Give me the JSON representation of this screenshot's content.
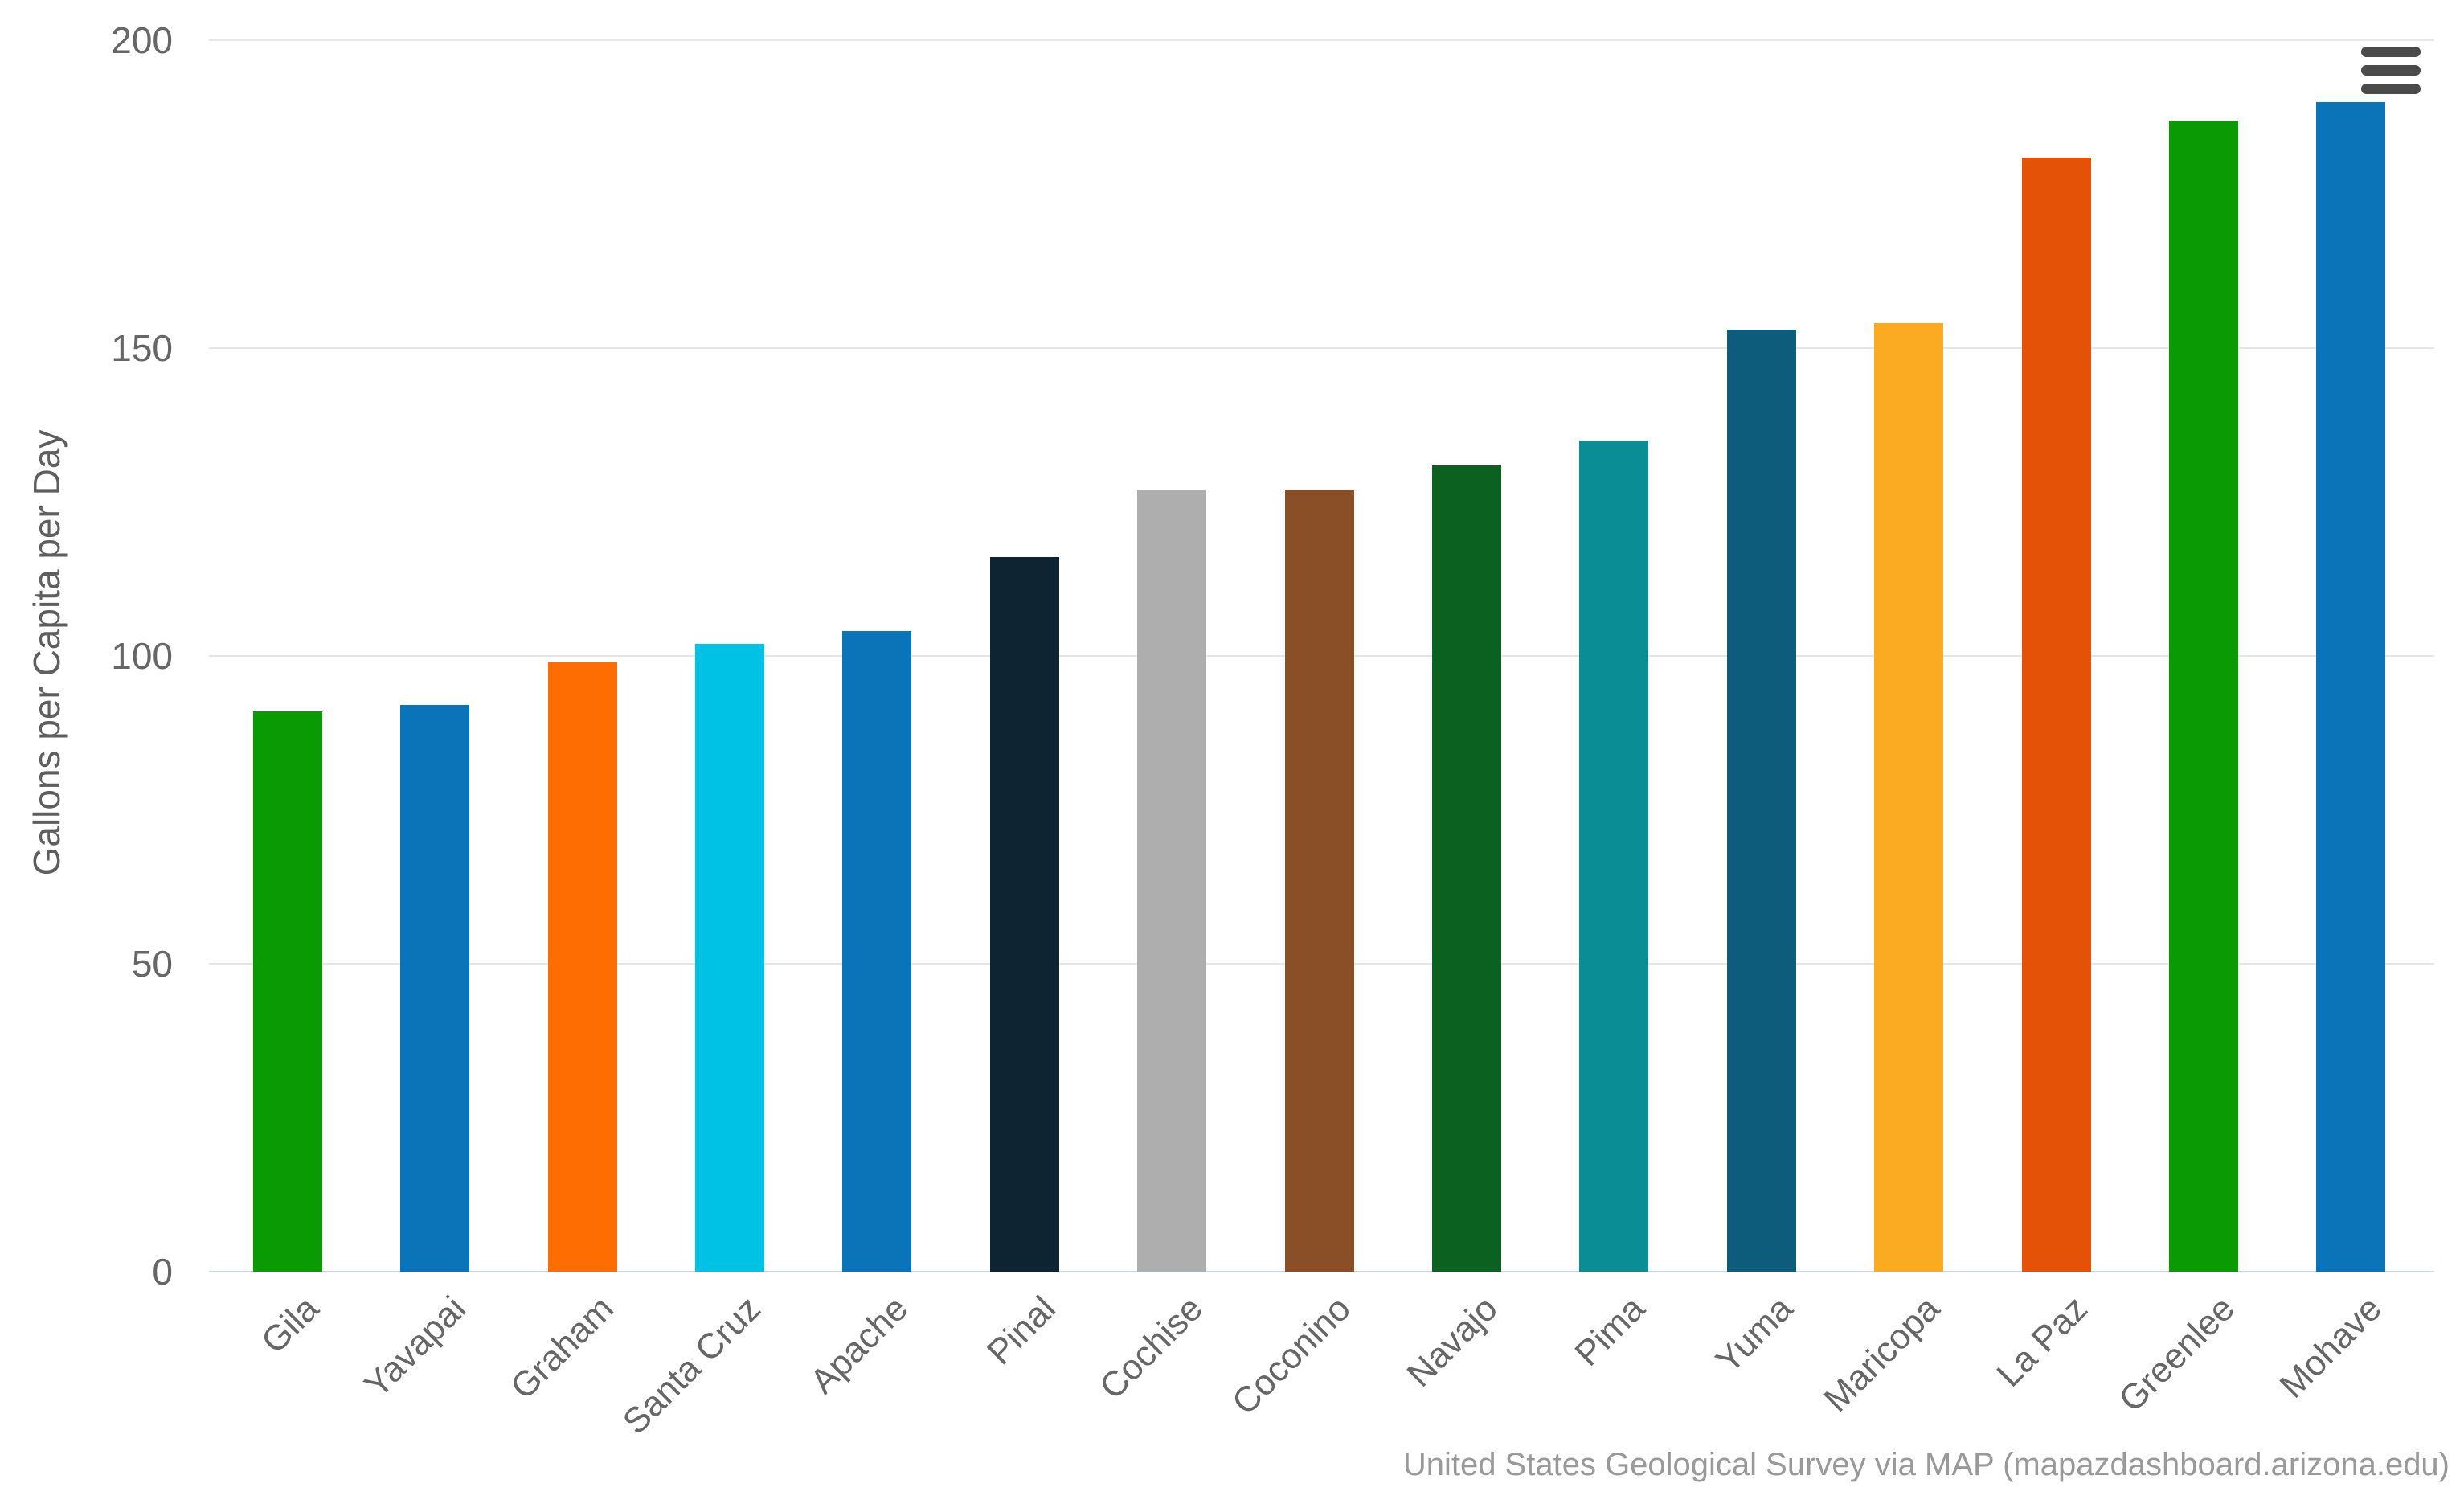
{
  "chart": {
    "context_menu_label": "Chart context menu"
  },
  "chart_data": {
    "type": "bar",
    "title": "",
    "xlabel": "",
    "ylabel": "Gallons per Capita per Day",
    "caption": "United States Geological Survey via MAP (mapazdashboard.arizona.edu)",
    "categories": [
      "Gila",
      "Yavapai",
      "Graham",
      "Santa Cruz",
      "Apache",
      "Pinal",
      "Cochise",
      "Coconino",
      "Navajo",
      "Pima",
      "Yuma",
      "Maricopa",
      "La Paz",
      "Greenlee",
      "Mohave"
    ],
    "values": [
      91,
      92,
      99,
      102,
      104,
      116,
      127,
      127,
      131,
      135,
      153,
      154,
      181,
      187,
      190
    ],
    "bar_colors": [
      "#0a9a04",
      "#0b74b8",
      "#fd6d02",
      "#00c2e4",
      "#0b74b8",
      "#0f2433",
      "#aeaeae",
      "#8a4f26",
      "#0b6120",
      "#0b8d95",
      "#0e5c7c",
      "#fbab21",
      "#e35207",
      "#0a9a04",
      "#0b74b8"
    ],
    "ylim": [
      0,
      200
    ],
    "yticks": [
      0,
      50,
      100,
      150,
      200
    ],
    "grid": true,
    "legend": false,
    "x_label_rotation": -45,
    "tick_color": "#666666",
    "gridline_color": "#e6e6e6",
    "axis_line_color": "#ccd6eb"
  }
}
